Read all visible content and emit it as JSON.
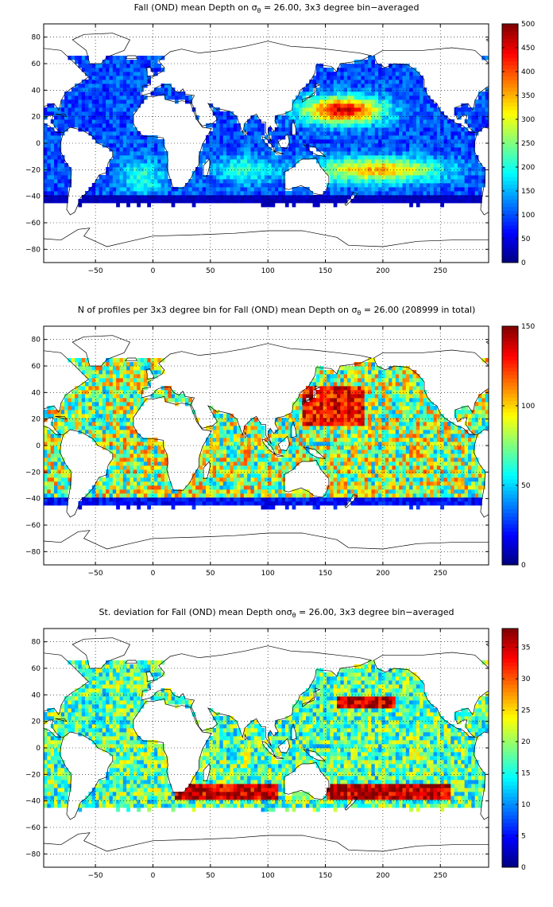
{
  "figure": {
    "panels": [
      {
        "id": "depth",
        "title_before": "Fall (OND) mean Depth on ",
        "title_sigma": "σ",
        "title_sub": "θ",
        "title_after": " = 26.00, 3x3 degree bin−averaged",
        "colorbar": {
          "min": 0,
          "max": 500,
          "ticks": [
            0,
            50,
            100,
            150,
            200,
            250,
            300,
            350,
            400,
            450,
            500
          ]
        }
      },
      {
        "id": "count",
        "title_before": "N of profiles per 3x3 degree bin for Fall (OND) mean Depth on ",
        "title_sigma": "σ",
        "title_sub": "θ",
        "title_after": " = 26.00 (208999 in total)",
        "colorbar": {
          "min": 0,
          "max": 150,
          "ticks": [
            0,
            50,
            100,
            150
          ]
        }
      },
      {
        "id": "stdev",
        "title_before": "St. deviation for Fall (OND) mean Depth on",
        "title_sigma": "σ",
        "title_sub": "θ",
        "title_after": " = 26.00, 3x3 degree bin−averaged",
        "colorbar": {
          "min": 0,
          "max": 38,
          "ticks": [
            0,
            5,
            10,
            15,
            20,
            25,
            30,
            35
          ]
        }
      }
    ],
    "x_axis": {
      "min": -95,
      "max": 292,
      "ticks": [
        -50,
        0,
        50,
        100,
        150,
        200,
        250
      ]
    },
    "y_axis": {
      "min": -90,
      "max": 90,
      "ticks": [
        -80,
        -60,
        -40,
        -20,
        0,
        20,
        40,
        60,
        80
      ]
    },
    "grid": true,
    "colormap": "jet"
  }
}
